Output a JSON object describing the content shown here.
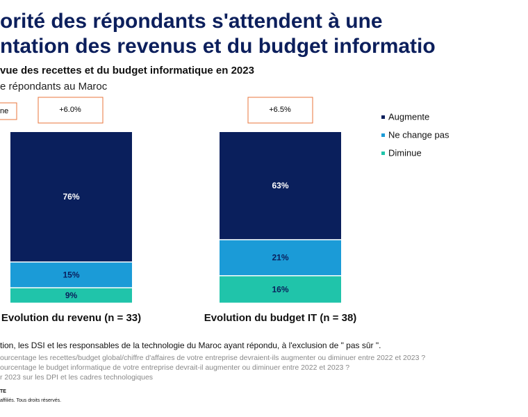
{
  "title_lines": [
    "orité des répondants s'attendent à une",
    "ntation des revenus et du budget informatio"
  ],
  "chart_data": {
    "type": "stacked_bar",
    "title": "vue des recettes et du budget informatique en 2023",
    "subtitle": "e répondants au Maroc",
    "categories": [
      "Evolution du revenu (n = 33)",
      "Evolution du budget IT (n = 38)"
    ],
    "series": [
      {
        "name": "Augmente",
        "color": "#0a1f5c",
        "values": [
          76,
          63
        ],
        "value_labels": [
          "76%",
          "63%"
        ]
      },
      {
        "name": "Ne change pas",
        "color": "#1b9bd7",
        "values": [
          15,
          21
        ],
        "value_labels": [
          "15%",
          "21%"
        ]
      },
      {
        "name": "Diminue",
        "color": "#20c4aa",
        "values": [
          9,
          16
        ],
        "value_labels": [
          "9%",
          "16%"
        ]
      }
    ],
    "annotations": [
      "ne",
      "+6.0%",
      "+6.5%"
    ],
    "ylim": [
      0,
      100
    ],
    "legend": "right"
  },
  "footnotes": [
    "tion, les DSI et les responsables de la technologie du Maroc ayant répondu, à l'exclusion de \" pas sûr \".",
    "ourcentage les recettes/budget global/chiffre d'affaires de votre entreprise devraient-ils augmenter ou diminuer entre 2022 et 2023 ?",
    "ourcentage le budget informatique de votre entreprise devrait-il augmenter ou diminuer entre 2022 et 2023 ?",
    "r 2023 sur les DPI et les cadres technologiques"
  ],
  "footer": [
    "TE",
    "affiliés. Tous droits réservés."
  ]
}
